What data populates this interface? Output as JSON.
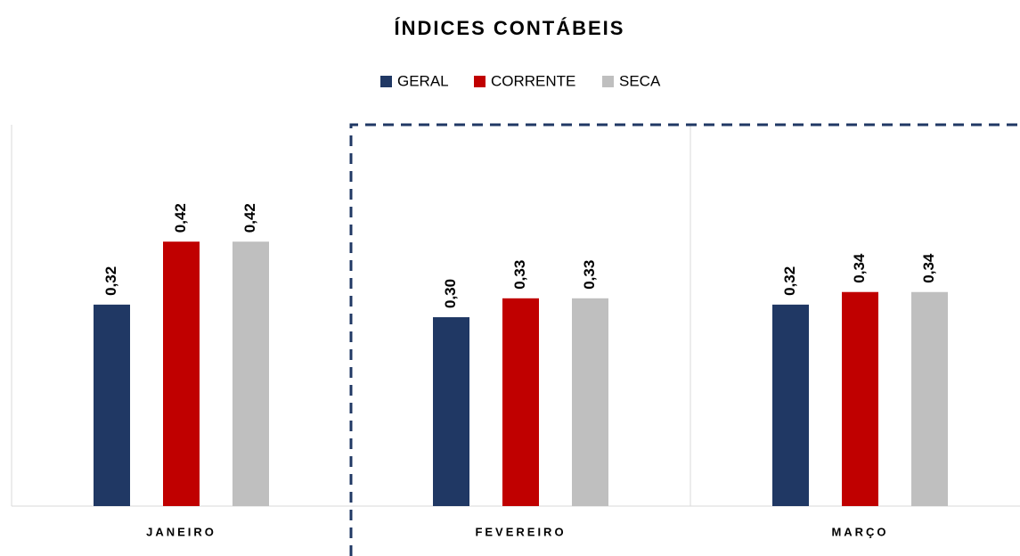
{
  "chart_data": {
    "type": "bar",
    "title": "ÍNDICES CONTÁBEIS",
    "categories": [
      "JANEIRO",
      "FEVEREIRO",
      "MARÇO"
    ],
    "series": [
      {
        "name": "GERAL",
        "color": "#203864",
        "values": [
          0.32,
          0.3,
          0.32
        ],
        "value_labels": [
          "0,32",
          "0,30",
          "0,32"
        ]
      },
      {
        "name": "CORRENTE",
        "color": "#c00000",
        "values": [
          0.42,
          0.33,
          0.34
        ],
        "value_labels": [
          "0,42",
          "0,33",
          "0,34"
        ]
      },
      {
        "name": "SECA",
        "color": "#bfbfbf",
        "values": [
          0.42,
          0.33,
          0.34
        ],
        "value_labels": [
          "0,42",
          "0,33",
          "0,34"
        ]
      }
    ],
    "ylim": [
      0,
      0.6
    ],
    "legend": "top"
  }
}
